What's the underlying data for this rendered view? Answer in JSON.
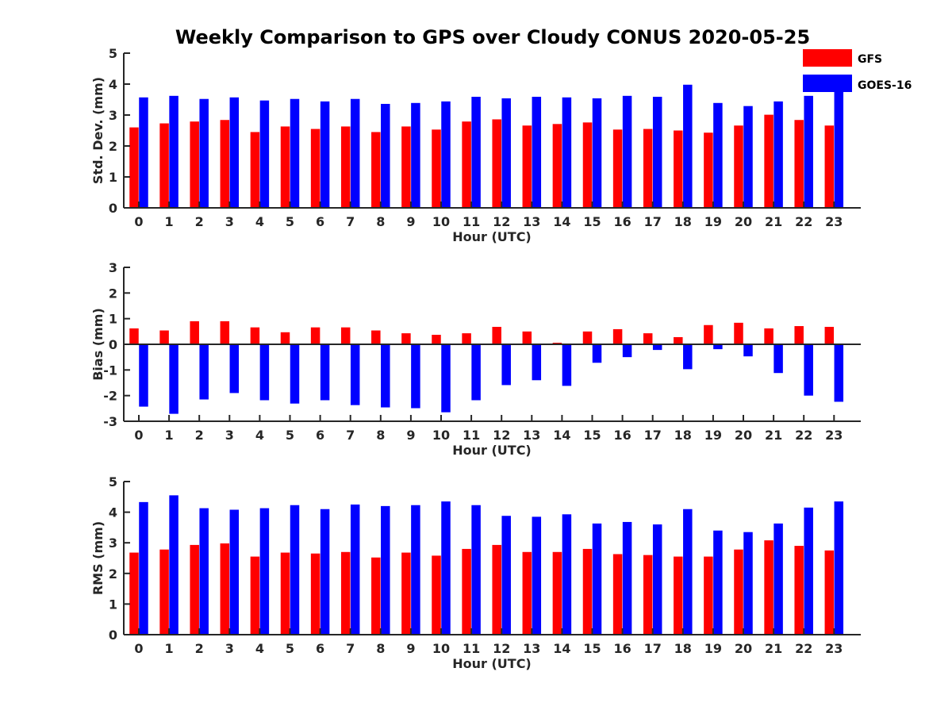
{
  "title": "Weekly Comparison to GPS over Cloudy CONUS 2020-05-25",
  "colors": {
    "GFS": "#ff0000",
    "GOES-16": "#0000ff",
    "axis": "#262626"
  },
  "legend": {
    "placement": "top-right",
    "entries": [
      "GFS",
      "GOES-16"
    ]
  },
  "chart_data": [
    {
      "type": "bar",
      "xlabel": "Hour (UTC)",
      "ylabel": "Std. Dev. (mm)",
      "ylim": [
        0,
        5
      ],
      "yticks": [
        "0",
        "1",
        "2",
        "3",
        "4",
        "5"
      ],
      "categories": [
        "0",
        "1",
        "2",
        "3",
        "4",
        "5",
        "6",
        "7",
        "8",
        "9",
        "10",
        "11",
        "12",
        "13",
        "14",
        "15",
        "16",
        "17",
        "18",
        "19",
        "20",
        "21",
        "22",
        "23"
      ],
      "grid": false,
      "series": [
        {
          "name": "GFS",
          "values": [
            2.6,
            2.73,
            2.79,
            2.84,
            2.45,
            2.63,
            2.55,
            2.63,
            2.45,
            2.63,
            2.53,
            2.79,
            2.86,
            2.66,
            2.71,
            2.76,
            2.53,
            2.55,
            2.5,
            2.43,
            2.66,
            3.01,
            2.84,
            2.66
          ]
        },
        {
          "name": "GOES-16",
          "values": [
            3.57,
            3.62,
            3.52,
            3.57,
            3.47,
            3.52,
            3.44,
            3.52,
            3.36,
            3.39,
            3.44,
            3.59,
            3.54,
            3.59,
            3.57,
            3.54,
            3.62,
            3.59,
            3.98,
            3.39,
            3.29,
            3.44,
            3.62,
            3.8
          ]
        }
      ]
    },
    {
      "type": "bar",
      "xlabel": "Hour (UTC)",
      "ylabel": "Bias (mm)",
      "ylim": [
        -3,
        3
      ],
      "yticks": [
        "-3",
        "-2",
        "-1",
        "0",
        "1",
        "2",
        "3"
      ],
      "categories": [
        "0",
        "1",
        "2",
        "3",
        "4",
        "5",
        "6",
        "7",
        "8",
        "9",
        "10",
        "11",
        "12",
        "13",
        "14",
        "15",
        "16",
        "17",
        "18",
        "19",
        "20",
        "21",
        "22",
        "23"
      ],
      "grid": false,
      "series": [
        {
          "name": "GFS",
          "values": [
            0.62,
            0.54,
            0.9,
            0.9,
            0.66,
            0.47,
            0.66,
            0.66,
            0.54,
            0.43,
            0.37,
            0.43,
            0.68,
            0.5,
            0.06,
            0.5,
            0.59,
            0.43,
            0.28,
            0.75,
            0.84,
            0.62,
            0.71,
            0.68
          ]
        },
        {
          "name": "GOES-16",
          "values": [
            -2.43,
            -2.71,
            -2.15,
            -1.9,
            -2.18,
            -2.31,
            -2.18,
            -2.37,
            -2.46,
            -2.49,
            -2.65,
            -2.18,
            -1.59,
            -1.4,
            -1.62,
            -0.72,
            -0.5,
            -0.22,
            -0.97,
            -0.19,
            -0.47,
            -1.12,
            -2.0,
            -2.24
          ]
        }
      ]
    },
    {
      "type": "bar",
      "xlabel": "Hour (UTC)",
      "ylabel": "RMS (mm)",
      "ylim": [
        0,
        5
      ],
      "yticks": [
        "0",
        "1",
        "2",
        "3",
        "4",
        "5"
      ],
      "categories": [
        "0",
        "1",
        "2",
        "3",
        "4",
        "5",
        "6",
        "7",
        "8",
        "9",
        "10",
        "11",
        "12",
        "13",
        "14",
        "15",
        "16",
        "17",
        "18",
        "19",
        "20",
        "21",
        "22",
        "23"
      ],
      "grid": false,
      "series": [
        {
          "name": "GFS",
          "values": [
            2.68,
            2.78,
            2.93,
            2.98,
            2.55,
            2.68,
            2.65,
            2.7,
            2.52,
            2.68,
            2.58,
            2.8,
            2.93,
            2.7,
            2.7,
            2.8,
            2.63,
            2.6,
            2.55,
            2.55,
            2.78,
            3.08,
            2.9,
            2.75
          ]
        },
        {
          "name": "GOES-16",
          "values": [
            4.33,
            4.55,
            4.13,
            4.08,
            4.13,
            4.23,
            4.1,
            4.25,
            4.2,
            4.23,
            4.35,
            4.23,
            3.88,
            3.85,
            3.93,
            3.63,
            3.68,
            3.6,
            4.1,
            3.4,
            3.35,
            3.63,
            4.15,
            4.35
          ]
        }
      ]
    }
  ]
}
